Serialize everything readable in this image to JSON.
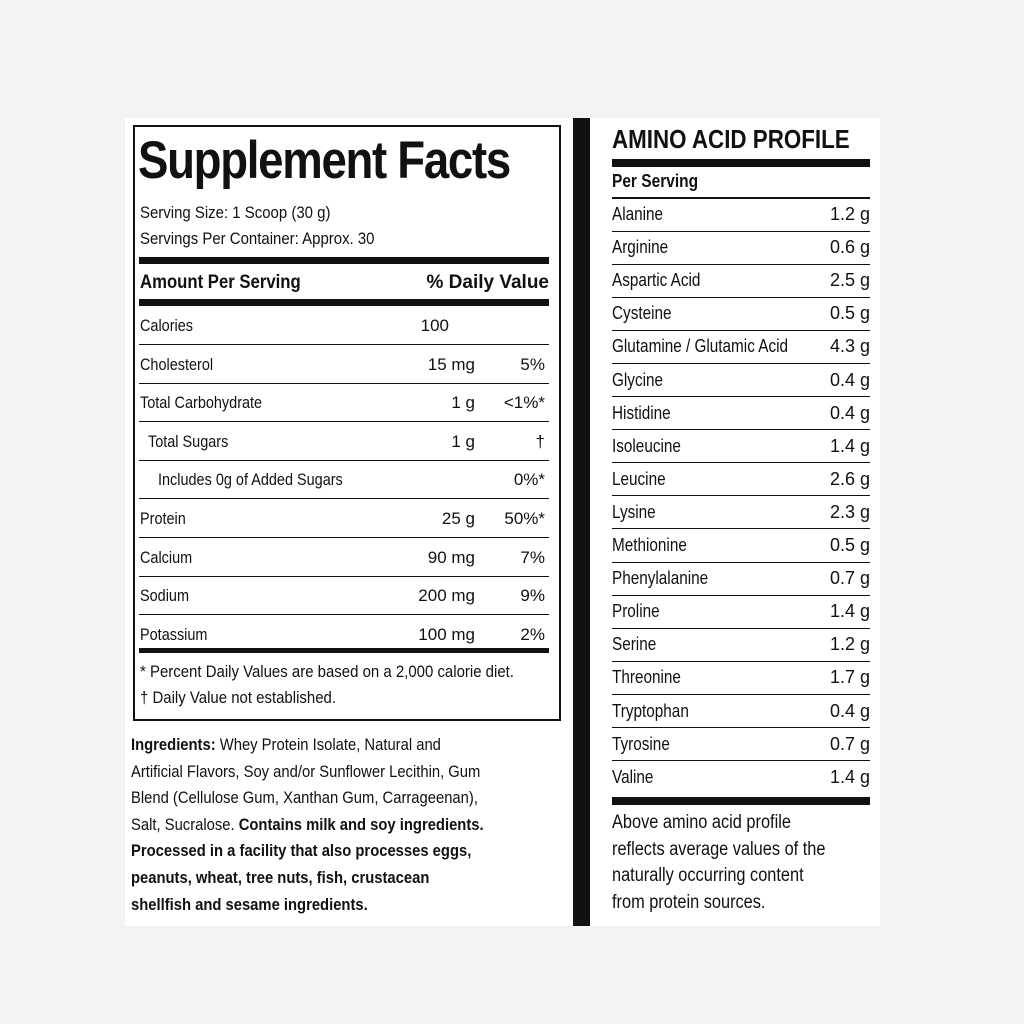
{
  "supplement_facts": {
    "title": "Supplement Facts",
    "serving_size": "Serving Size: 1 Scoop (30 g)",
    "servings_per_container": "Servings Per Container: Approx. 30",
    "header_amount": "Amount Per Serving",
    "header_dv": "% Daily Value",
    "rows": [
      {
        "name": "Calories",
        "amount": "100",
        "dv": ""
      },
      {
        "name": "Cholesterol",
        "amount": "15 mg",
        "dv": "5%"
      },
      {
        "name": "Total Carbohydrate",
        "amount": "1 g",
        "dv": "<1%*"
      },
      {
        "name": "Total Sugars",
        "amount": "1 g",
        "dv": "†",
        "indent": 1
      },
      {
        "name": "Includes 0g of Added Sugars",
        "amount": "",
        "dv": "0%*",
        "indent": 2
      },
      {
        "name": "Protein",
        "amount": "25 g",
        "dv": "50%*"
      },
      {
        "name": "Calcium",
        "amount": "90 mg",
        "dv": "7%"
      },
      {
        "name": "Sodium",
        "amount": "200 mg",
        "dv": "9%"
      },
      {
        "name": "Potassium",
        "amount": "100 mg",
        "dv": "2%"
      }
    ],
    "footnote_1": "* Percent Daily Values are based on a 2,000 calorie diet.",
    "footnote_2": "† Daily Value not established."
  },
  "ingredients": {
    "lines": [
      [
        {
          "t": "Ingredients:",
          "b": true
        },
        {
          "t": " Whey Protein Isolate, Natural and"
        }
      ],
      [
        {
          "t": "Artificial Flavors, Soy and/or Sunflower Lecithin, Gum"
        }
      ],
      [
        {
          "t": "Blend (Cellulose Gum, Xanthan Gum, Carrageenan),"
        }
      ],
      [
        {
          "t": "Salt, Sucralose. "
        },
        {
          "t": "Contains milk and soy ingredients.",
          "b": true
        }
      ],
      [
        {
          "t": "Processed in a facility that also processes eggs,",
          "b": true
        }
      ],
      [
        {
          "t": "peanuts, wheat, tree nuts, fish, crustacean",
          "b": true
        }
      ],
      [
        {
          "t": "shellfish and sesame ingredients.",
          "b": true
        }
      ]
    ]
  },
  "amino_acid_profile": {
    "title": "AMINO ACID PROFILE",
    "subheader": "Per Serving",
    "rows": [
      {
        "name": "Alanine",
        "value": "1.2 g"
      },
      {
        "name": "Arginine",
        "value": "0.6 g"
      },
      {
        "name": "Aspartic Acid",
        "value": "2.5 g"
      },
      {
        "name": "Cysteine",
        "value": "0.5 g"
      },
      {
        "name": "Glutamine / Glutamic Acid",
        "value": "4.3 g"
      },
      {
        "name": "Glycine",
        "value": "0.4 g"
      },
      {
        "name": "Histidine",
        "value": "0.4 g"
      },
      {
        "name": "Isoleucine",
        "value": "1.4 g"
      },
      {
        "name": "Leucine",
        "value": "2.6 g"
      },
      {
        "name": "Lysine",
        "value": "2.3 g"
      },
      {
        "name": "Methionine",
        "value": "0.5 g"
      },
      {
        "name": "Phenylalanine",
        "value": "0.7 g"
      },
      {
        "name": "Proline",
        "value": "1.4 g"
      },
      {
        "name": "Serine",
        "value": "1.2 g"
      },
      {
        "name": "Threonine",
        "value": "1.7 g"
      },
      {
        "name": "Tryptophan",
        "value": "0.4 g"
      },
      {
        "name": "Tyrosine",
        "value": "0.7 g"
      },
      {
        "name": "Valine",
        "value": "1.4 g"
      }
    ],
    "note_lines": [
      "Above amino acid profile",
      "reflects average values of the",
      "naturally occurring content",
      "from protein sources."
    ]
  }
}
